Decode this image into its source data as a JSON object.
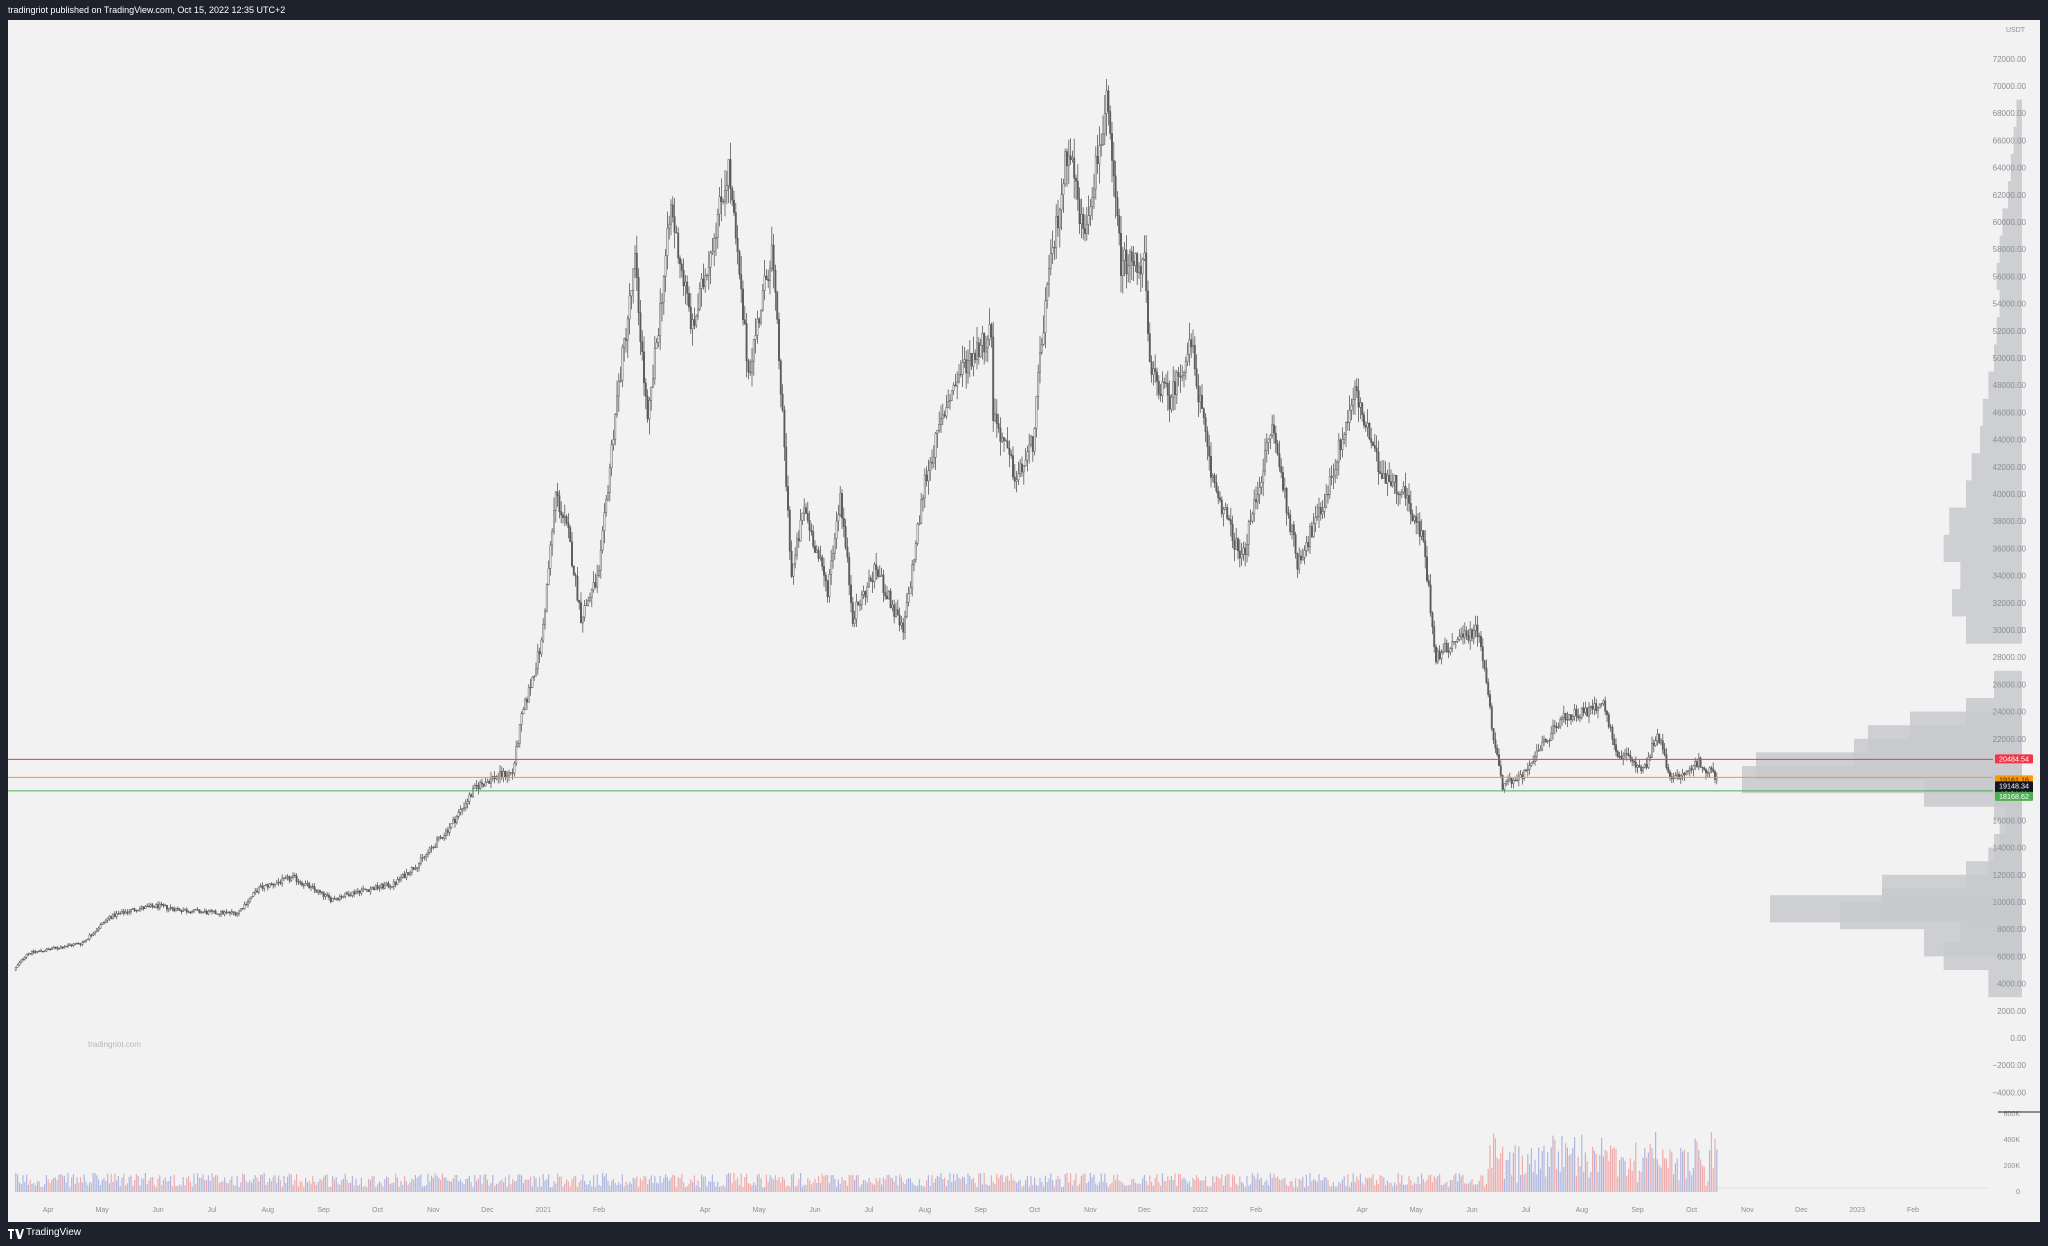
{
  "header": {
    "text": "tradingriot published on TradingView.com, Oct 15, 2022 12:35 UTC+2"
  },
  "footer": {
    "brand": "TradingView",
    "logo_icon": "tradingview-logo-icon"
  },
  "watermark": "tradingriot.com",
  "colors": {
    "background": "#f2f2f2",
    "frame": "#1e222d",
    "candle": "#5a5a5a",
    "red_line": "#f23645",
    "orange_line": "#ff9800",
    "green_line": "#4caf50",
    "volume_profile": "#c8c9cc",
    "volume_up": "#9fa8da",
    "volume_down": "#ef9a9a"
  },
  "price_axis": {
    "unit": "USDT",
    "ticks": [
      "72000.00",
      "70000.00",
      "68000.00",
      "66000.00",
      "64000.00",
      "62000.00",
      "60000.00",
      "58000.00",
      "56000.00",
      "54000.00",
      "52000.00",
      "50000.00",
      "48000.00",
      "46000.00",
      "44000.00",
      "42000.00",
      "40000.00",
      "38000.00",
      "36000.00",
      "34000.00",
      "32000.00",
      "30000.00",
      "28000.00",
      "26000.00",
      "24000.00",
      "22000.00",
      "16000.00",
      "14000.00",
      "12000.00",
      "10000.00",
      "8000.00",
      "6000.00",
      "4000.00",
      "2000.00",
      "0.00",
      "−2000.00",
      "−4000.00"
    ]
  },
  "price_labels": [
    {
      "text": "20484.54",
      "bg": "#f23645",
      "fg": "#ffffff"
    },
    {
      "text": "19161.16",
      "bg": "#ff9800",
      "fg": "#1e222d"
    },
    {
      "text": "19148.34",
      "bg": "#131722",
      "fg": "#ffffff"
    },
    {
      "text": "13:24:11",
      "bg": "#131722",
      "fg": "#ffffff"
    },
    {
      "text": "18168.62",
      "bg": "#4caf50",
      "fg": "#ffffff"
    }
  ],
  "volume_axis": {
    "ticks": [
      "600K",
      "400K",
      "200K",
      "0"
    ]
  },
  "time_axis": {
    "labels": [
      "Apr",
      "May",
      "Jun",
      "Jul",
      "Aug",
      "Sep",
      "Oct",
      "Nov",
      "Dec",
      "2021",
      "Feb",
      "Apr",
      "May",
      "Jun",
      "Jul",
      "Aug",
      "Sep",
      "Oct",
      "Nov",
      "Dec",
      "2022",
      "Feb",
      "Apr",
      "May",
      "Jun",
      "Jul",
      "Aug",
      "Sep",
      "Oct",
      "Nov",
      "Dec",
      "2023",
      "Feb"
    ]
  },
  "chart_data": {
    "type": "candlestick",
    "title": "",
    "xlabel": "",
    "ylabel": "USDT",
    "ylim": [
      -5000,
      74000
    ],
    "grid": false,
    "horizontal_lines": [
      {
        "name": "red-level",
        "price": 20484.54
      },
      {
        "name": "orange-level",
        "price": 19161.16
      },
      {
        "name": "green-level",
        "price": 18168.62
      }
    ],
    "last_price": 19148.34,
    "countdown": "13:24:11",
    "close_path": [
      [
        "2020-03-13",
        5000
      ],
      [
        "2020-03-20",
        6200
      ],
      [
        "2020-04-01",
        6500
      ],
      [
        "2020-04-20",
        7000
      ],
      [
        "2020-05-05",
        8900
      ],
      [
        "2020-05-20",
        9500
      ],
      [
        "2020-06-01",
        9700
      ],
      [
        "2020-06-15",
        9400
      ],
      [
        "2020-07-01",
        9200
      ],
      [
        "2020-07-15",
        9200
      ],
      [
        "2020-07-27",
        11000
      ],
      [
        "2020-08-15",
        11800
      ],
      [
        "2020-09-05",
        10200
      ],
      [
        "2020-09-20",
        10800
      ],
      [
        "2020-10-10",
        11300
      ],
      [
        "2020-10-25",
        13000
      ],
      [
        "2020-11-10",
        15500
      ],
      [
        "2020-11-25",
        18500
      ],
      [
        "2020-12-05",
        19200
      ],
      [
        "2020-12-15",
        19500
      ],
      [
        "2020-12-20",
        23500
      ],
      [
        "2020-12-31",
        29000
      ],
      [
        "2021-01-08",
        40000
      ],
      [
        "2021-01-15",
        37000
      ],
      [
        "2021-01-22",
        31000
      ],
      [
        "2021-02-01",
        34000
      ],
      [
        "2021-02-10",
        46000
      ],
      [
        "2021-02-21",
        57000
      ],
      [
        "2021-02-28",
        45000
      ],
      [
        "2021-03-13",
        61000
      ],
      [
        "2021-03-25",
        52000
      ],
      [
        "2021-04-14",
        64000
      ],
      [
        "2021-04-25",
        49000
      ],
      [
        "2021-05-08",
        58000
      ],
      [
        "2021-05-12",
        50000
      ],
      [
        "2021-05-19",
        34000
      ],
      [
        "2021-05-26",
        39000
      ],
      [
        "2021-06-08",
        33000
      ],
      [
        "2021-06-15",
        40000
      ],
      [
        "2021-06-22",
        31000
      ],
      [
        "2021-07-05",
        34500
      ],
      [
        "2021-07-20",
        29800
      ],
      [
        "2021-08-01",
        41000
      ],
      [
        "2021-08-14",
        47000
      ],
      [
        "2021-08-23",
        49500
      ],
      [
        "2021-09-07",
        52000
      ],
      [
        "2021-09-08",
        46000
      ],
      [
        "2021-09-21",
        41000
      ],
      [
        "2021-09-30",
        43800
      ],
      [
        "2021-10-07",
        54000
      ],
      [
        "2021-10-20",
        66000
      ],
      [
        "2021-10-28",
        59000
      ],
      [
        "2021-11-10",
        68500
      ],
      [
        "2021-11-18",
        57000
      ],
      [
        "2021-12-01",
        57000
      ],
      [
        "2021-12-04",
        49000
      ],
      [
        "2021-12-15",
        47000
      ],
      [
        "2021-12-27",
        51000
      ],
      [
        "2022-01-07",
        41500
      ],
      [
        "2022-01-24",
        35000
      ],
      [
        "2022-02-10",
        45000
      ],
      [
        "2022-02-24",
        35000
      ],
      [
        "2022-03-10",
        39000
      ],
      [
        "2022-03-28",
        47500
      ],
      [
        "2022-04-10",
        42000
      ],
      [
        "2022-04-25",
        40000
      ],
      [
        "2022-05-05",
        36500
      ],
      [
        "2022-05-12",
        28000
      ],
      [
        "2022-05-25",
        29500
      ],
      [
        "2022-06-05",
        30000
      ],
      [
        "2022-06-13",
        22000
      ],
      [
        "2022-06-18",
        18500
      ],
      [
        "2022-07-01",
        19500
      ],
      [
        "2022-07-20",
        23500
      ],
      [
        "2022-08-14",
        24400
      ],
      [
        "2022-08-20",
        21000
      ],
      [
        "2022-09-05",
        19800
      ],
      [
        "2022-09-12",
        22500
      ],
      [
        "2022-09-20",
        18900
      ],
      [
        "2022-10-05",
        20300
      ],
      [
        "2022-10-15",
        19148
      ]
    ],
    "volume_profile": [
      {
        "price": 4000,
        "volume": 0.12
      },
      {
        "price": 6000,
        "volume": 0.28
      },
      {
        "price": 7000,
        "volume": 0.35
      },
      {
        "price": 8000,
        "volume": 0.22
      },
      {
        "price": 9000,
        "volume": 0.65
      },
      {
        "price": 9500,
        "volume": 0.9
      },
      {
        "price": 10000,
        "volume": 0.5
      },
      {
        "price": 11000,
        "volume": 0.5
      },
      {
        "price": 12000,
        "volume": 0.2
      },
      {
        "price": 13000,
        "volume": 0.12
      },
      {
        "price": 14000,
        "volume": 0.1
      },
      {
        "price": 15000,
        "volume": 0.08
      },
      {
        "price": 16000,
        "volume": 0.06
      },
      {
        "price": 17000,
        "volume": 0.1
      },
      {
        "price": 18000,
        "volume": 0.35
      },
      {
        "price": 19000,
        "volume": 1.0
      },
      {
        "price": 20000,
        "volume": 0.95
      },
      {
        "price": 21000,
        "volume": 0.6
      },
      {
        "price": 22000,
        "volume": 0.55
      },
      {
        "price": 23000,
        "volume": 0.4
      },
      {
        "price": 24000,
        "volume": 0.2
      },
      {
        "price": 26000,
        "volume": 0.1
      },
      {
        "price": 30000,
        "volume": 0.2
      },
      {
        "price": 32000,
        "volume": 0.25
      },
      {
        "price": 34000,
        "volume": 0.22
      },
      {
        "price": 36000,
        "volume": 0.28
      },
      {
        "price": 38000,
        "volume": 0.26
      },
      {
        "price": 40000,
        "volume": 0.2
      },
      {
        "price": 42000,
        "volume": 0.18
      },
      {
        "price": 44000,
        "volume": 0.15
      },
      {
        "price": 46000,
        "volume": 0.14
      },
      {
        "price": 48000,
        "volume": 0.12
      },
      {
        "price": 50000,
        "volume": 0.1
      },
      {
        "price": 52000,
        "volume": 0.09
      },
      {
        "price": 54000,
        "volume": 0.08
      },
      {
        "price": 56000,
        "volume": 0.09
      },
      {
        "price": 58000,
        "volume": 0.08
      },
      {
        "price": 60000,
        "volume": 0.07
      },
      {
        "price": 62000,
        "volume": 0.05
      },
      {
        "price": 64000,
        "volume": 0.04
      },
      {
        "price": 66000,
        "volume": 0.03
      },
      {
        "price": 68000,
        "volume": 0.02
      }
    ]
  }
}
